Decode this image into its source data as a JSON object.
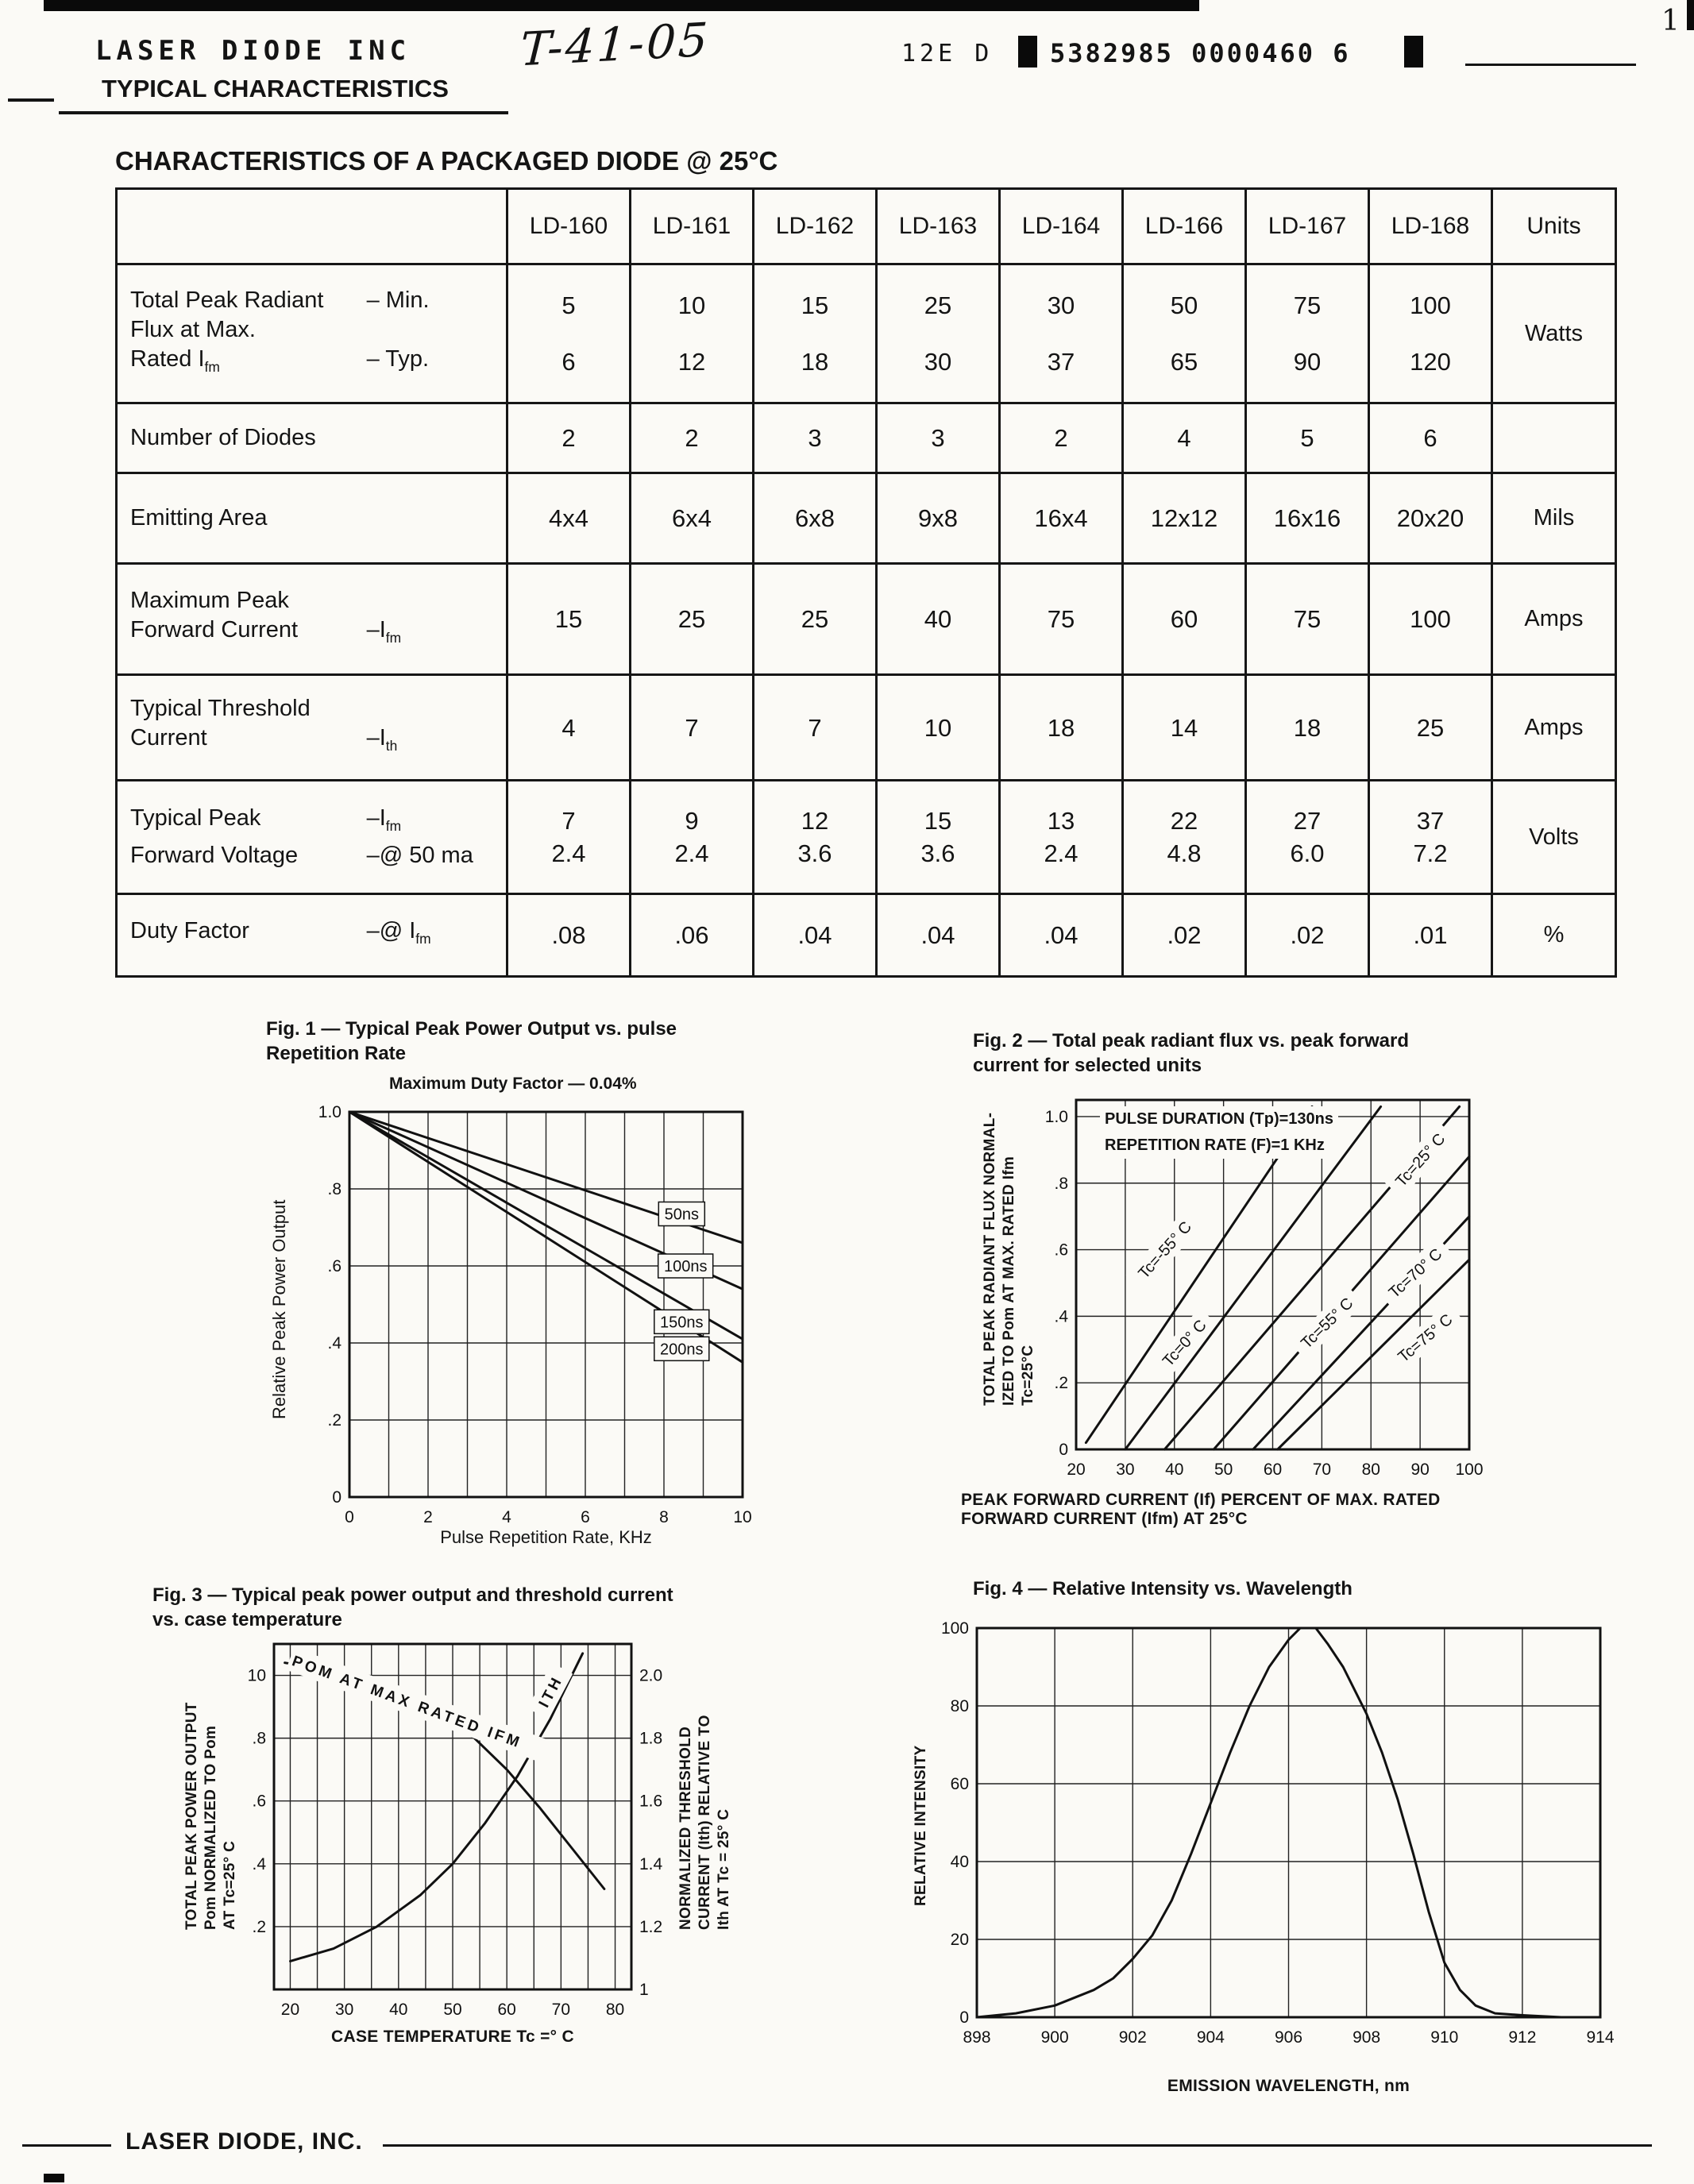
{
  "page": {
    "artifacts": {
      "page_number": "1"
    },
    "header": {
      "company": "LASER DIODE INC",
      "handwritten": "T-41-05",
      "doc_code": "12E D",
      "stamp_number": "5382985 0000460 6",
      "section_heading": "TYPICAL CHARACTERISTICS"
    },
    "title": "CHARACTERISTICS OF A PACKAGED DIODE @ 25°C",
    "footer": {
      "company": "LASER DIODE, INC."
    }
  },
  "table": {
    "columns": [
      "",
      "LD-160",
      "LD-161",
      "LD-162",
      "LD-163",
      "LD-164",
      "LD-166",
      "LD-167",
      "LD-168",
      "Units"
    ],
    "rows": [
      {
        "label_lines": [
          [
            "Total Peak Radiant",
            "– Min."
          ],
          [
            "Flux at Max.",
            ""
          ],
          [
            "Rated I~fm~",
            "– Typ."
          ]
        ],
        "cells": [
          [
            "5",
            "6"
          ],
          [
            "10",
            "12"
          ],
          [
            "15",
            "18"
          ],
          [
            "25",
            "30"
          ],
          [
            "30",
            "37"
          ],
          [
            "50",
            "65"
          ],
          [
            "75",
            "90"
          ],
          [
            "100",
            "120"
          ]
        ],
        "units": "Watts"
      },
      {
        "label_lines": [
          [
            "Number of Diodes",
            ""
          ]
        ],
        "cells": [
          "2",
          "2",
          "3",
          "3",
          "2",
          "4",
          "5",
          "6"
        ],
        "units": ""
      },
      {
        "label_lines": [
          [
            "Emitting Area",
            ""
          ]
        ],
        "cells": [
          "4x4",
          "6x4",
          "6x8",
          "9x8",
          "16x4",
          "12x12",
          "16x16",
          "20x20"
        ],
        "units": "Mils"
      },
      {
        "label_lines": [
          [
            "Maximum Peak",
            ""
          ],
          [
            "Forward Current",
            "–I~fm~"
          ]
        ],
        "cells": [
          "15",
          "25",
          "25",
          "40",
          "75",
          "60",
          "75",
          "100"
        ],
        "units": "Amps"
      },
      {
        "label_lines": [
          [
            "Typical Threshold",
            ""
          ],
          [
            "Current",
            "–I~th~"
          ]
        ],
        "cells": [
          "4",
          "7",
          "7",
          "10",
          "18",
          "14",
          "18",
          "25"
        ],
        "units": "Amps"
      },
      {
        "label_lines": [
          [
            "Typical Peak",
            "–I~fm~"
          ],
          [
            "Forward Voltage",
            "–@ 50 ma"
          ]
        ],
        "cells": [
          [
            "7",
            "2.4"
          ],
          [
            "9",
            "2.4"
          ],
          [
            "12",
            "3.6"
          ],
          [
            "15",
            "3.6"
          ],
          [
            "13",
            "2.4"
          ],
          [
            "22",
            "4.8"
          ],
          [
            "27",
            "6.0"
          ],
          [
            "37",
            "7.2"
          ]
        ],
        "units": "Volts"
      },
      {
        "label_lines": [
          [
            "Duty Factor",
            "–@ I~fm~"
          ]
        ],
        "cells": [
          ".08",
          ".06",
          ".04",
          ".04",
          ".04",
          ".02",
          ".02",
          ".01"
        ],
        "units": "%"
      }
    ]
  },
  "chart_data": [
    {
      "id": "fig1",
      "type": "line",
      "caption_lines": [
        "Fig. 1 — Typical Peak Power Output vs. pulse",
        "Repetition Rate"
      ],
      "subtitle": "Maximum Duty Factor — 0.04%",
      "xlabel": "Pulse Repetition Rate, KHz",
      "ylabel": "Relative Peak Power Output",
      "xlim": [
        0,
        10
      ],
      "ylim": [
        0,
        1.0
      ],
      "xticks": [
        {
          "v": 0,
          "label": "0"
        },
        {
          "v": 2,
          "label": "2"
        },
        {
          "v": 4,
          "label": "4"
        },
        {
          "v": 6,
          "label": "6"
        },
        {
          "v": 8,
          "label": "8"
        },
        {
          "v": 10,
          "label": "10"
        }
      ],
      "yticks": [
        {
          "v": 1.0,
          "label": "1.0"
        },
        {
          "v": 0.8,
          "label": ".8"
        },
        {
          "v": 0.6,
          "label": ".6"
        },
        {
          "v": 0.4,
          "label": ".4"
        },
        {
          "v": 0.2,
          "label": ".2"
        },
        {
          "v": 0,
          "label": "0"
        }
      ],
      "grid_x": [
        1,
        2,
        3,
        4,
        5,
        6,
        7,
        8,
        9
      ],
      "grid_y": [
        0.2,
        0.4,
        0.6,
        0.8
      ],
      "legend_position": "right-inside",
      "series": [
        {
          "name": "50ns",
          "points": [
            [
              0,
              1.0
            ],
            [
              10,
              0.66
            ]
          ],
          "label": {
            "x": 8.45,
            "y": 0.735,
            "rotate": 0,
            "box": true
          }
        },
        {
          "name": "100ns",
          "points": [
            [
              0,
              1.0
            ],
            [
              10,
              0.54
            ]
          ],
          "label": {
            "x": 8.55,
            "y": 0.6,
            "rotate": 0,
            "box": true
          }
        },
        {
          "name": "150ns",
          "points": [
            [
              0,
              1.0
            ],
            [
              10,
              0.41
            ]
          ],
          "label": {
            "x": 8.45,
            "y": 0.455,
            "rotate": 0,
            "box": true
          }
        },
        {
          "name": "200ns",
          "points": [
            [
              0,
              1.0
            ],
            [
              10,
              0.35
            ]
          ],
          "label": {
            "x": 8.45,
            "y": 0.385,
            "rotate": 0,
            "box": true
          }
        }
      ]
    },
    {
      "id": "fig2",
      "type": "line",
      "caption_lines": [
        "Fig. 2 — Total peak radiant flux vs. peak forward",
        "current for selected units"
      ],
      "annotation_lines": [
        "PULSE DURATION (Tp)=130ns",
        "REPETITION RATE (F)=1 KHz"
      ],
      "ylabel_lines": [
        "TOTAL PEAK RADIANT FLUX NORMAL-",
        "IZED TO Pom AT MAX. RATED Ifm",
        "Tc=25°C"
      ],
      "xlabel_lines": [
        "PEAK FORWARD CURRENT (If) PERCENT OF MAX. RATED",
        "FORWARD CURRENT (Ifm) AT 25°C"
      ],
      "xlim": [
        20,
        100
      ],
      "ylim": [
        0,
        1.05
      ],
      "xticks": [
        {
          "v": 20,
          "label": "20"
        },
        {
          "v": 30,
          "label": "30"
        },
        {
          "v": 40,
          "label": "40"
        },
        {
          "v": 50,
          "label": "50"
        },
        {
          "v": 60,
          "label": "60"
        },
        {
          "v": 70,
          "label": "70"
        },
        {
          "v": 80,
          "label": "80"
        },
        {
          "v": 90,
          "label": "90"
        },
        {
          "v": 100,
          "label": "100"
        }
      ],
      "yticks": [
        {
          "v": 1.0,
          "label": "1.0"
        },
        {
          "v": 0.8,
          "label": ".8"
        },
        {
          "v": 0.6,
          "label": ".6"
        },
        {
          "v": 0.4,
          "label": ".4"
        },
        {
          "v": 0.2,
          "label": ".2"
        },
        {
          "v": 0,
          "label": "0"
        }
      ],
      "grid_x": [
        30,
        40,
        50,
        60,
        70,
        80,
        90
      ],
      "grid_y": [
        0.2,
        0.4,
        0.6,
        0.8,
        1.0
      ],
      "series": [
        {
          "name": "Tc=-55° C",
          "points": [
            [
              22,
              0.02
            ],
            [
              68,
              1.03
            ]
          ],
          "label": {
            "x": 38,
            "y": 0.6,
            "rotate": -48
          }
        },
        {
          "name": "Tc=0° C",
          "points": [
            [
              30,
              0
            ],
            [
              82,
              1.03
            ]
          ],
          "label": {
            "x": 42,
            "y": 0.32,
            "rotate": -48
          }
        },
        {
          "name": "Tc=25° C",
          "points": [
            [
              38,
              0
            ],
            [
              98,
              1.03
            ]
          ],
          "label": {
            "x": 90,
            "y": 0.87,
            "rotate": -48
          }
        },
        {
          "name": "Tc=55° C",
          "points": [
            [
              48,
              0
            ],
            [
              100,
              0.88
            ]
          ],
          "label": {
            "x": 71,
            "y": 0.38,
            "rotate": -44
          }
        },
        {
          "name": "Tc=70° C",
          "points": [
            [
              56,
              0
            ],
            [
              100,
              0.7
            ]
          ],
          "label": {
            "x": 89,
            "y": 0.53,
            "rotate": -42
          }
        },
        {
          "name": "Tc=75° C",
          "points": [
            [
              61,
              0
            ],
            [
              100,
              0.57
            ]
          ],
          "label": {
            "x": 91,
            "y": 0.335,
            "rotate": -40
          }
        }
      ]
    },
    {
      "id": "fig3",
      "type": "line",
      "caption_lines": [
        "Fig. 3 — Typical peak power output and threshold current",
        "vs. case temperature"
      ],
      "ylabel_left_lines": [
        "TOTAL PEAK POWER OUTPUT",
        "Pom NORMALIZED TO Pom",
        "AT Tc=25° C"
      ],
      "ylabel_right_lines": [
        "NORMALIZED THRESHOLD",
        "CURRENT (Ith) RELATIVE TO",
        "Ith AT Tc = 25° C"
      ],
      "xlabel": "CASE TEMPERATURE Tc =° C",
      "xlim": [
        17,
        83
      ],
      "ylim": [
        0,
        1.1
      ],
      "xticks": [
        {
          "v": 20,
          "label": "20"
        },
        {
          "v": 30,
          "label": "30"
        },
        {
          "v": 40,
          "label": "40"
        },
        {
          "v": 50,
          "label": "50"
        },
        {
          "v": 60,
          "label": "60"
        },
        {
          "v": 70,
          "label": "70"
        },
        {
          "v": 80,
          "label": "80"
        }
      ],
      "yticks": [
        {
          "v": 1.0,
          "label": "10"
        },
        {
          "v": 0.8,
          "label": ".8"
        },
        {
          "v": 0.6,
          "label": ".6"
        },
        {
          "v": 0.4,
          "label": ".4"
        },
        {
          "v": 0.2,
          "label": ".2"
        }
      ],
      "yticks_right": [
        {
          "v": 1.0,
          "label": "2.0"
        },
        {
          "v": 0.8,
          "label": "1.8"
        },
        {
          "v": 0.6,
          "label": "1.6"
        },
        {
          "v": 0.4,
          "label": "1.4"
        },
        {
          "v": 0.2,
          "label": "1.2"
        },
        {
          "v": 0,
          "label": "1"
        }
      ],
      "grid_x": [
        20,
        25,
        30,
        35,
        40,
        45,
        50,
        55,
        60,
        65,
        70,
        75,
        80
      ],
      "grid_y": [
        0.2,
        0.4,
        0.6,
        0.8,
        1.0
      ],
      "series": [
        {
          "name": "POM AT MAX RATED IFM",
          "points": [
            [
              19,
              1.04
            ],
            [
              26,
              1.02
            ],
            [
              33,
              0.99
            ],
            [
              40,
              0.95
            ],
            [
              47,
              0.89
            ],
            [
              54,
              0.8
            ],
            [
              60,
              0.7
            ],
            [
              66,
              0.58
            ],
            [
              72,
              0.45
            ],
            [
              78,
              0.32
            ]
          ],
          "label": {
            "x": 20.5,
            "y": 1.05,
            "rotate": 20,
            "spread": true,
            "anchor": "start"
          }
        },
        {
          "name": "ITH",
          "points": [
            [
              20,
              0.09
            ],
            [
              28,
              0.13
            ],
            [
              36,
              0.2
            ],
            [
              44,
              0.3
            ],
            [
              50,
              0.4
            ],
            [
              56,
              0.53
            ],
            [
              62,
              0.68
            ],
            [
              68,
              0.86
            ],
            [
              72,
              1.0
            ],
            [
              74,
              1.07
            ]
          ],
          "label": {
            "x": 68,
            "y": 0.95,
            "rotate": -62,
            "spread": true
          }
        }
      ]
    },
    {
      "id": "fig4",
      "type": "line",
      "caption_lines": [
        "Fig. 4 — Relative Intensity vs. Wavelength"
      ],
      "ylabel": "RELATIVE INTENSITY",
      "xlabel": "EMISSION WAVELENGTH, nm",
      "xlim": [
        898,
        914
      ],
      "ylim": [
        0,
        100
      ],
      "xticks": [
        {
          "v": 898,
          "label": "898"
        },
        {
          "v": 900,
          "label": "900"
        },
        {
          "v": 902,
          "label": "902"
        },
        {
          "v": 904,
          "label": "904"
        },
        {
          "v": 906,
          "label": "906"
        },
        {
          "v": 908,
          "label": "908"
        },
        {
          "v": 910,
          "label": "910"
        },
        {
          "v": 912,
          "label": "912"
        },
        {
          "v": 914,
          "label": "914"
        }
      ],
      "yticks": [
        {
          "v": 100,
          "label": "100"
        },
        {
          "v": 80,
          "label": "80"
        },
        {
          "v": 60,
          "label": "60"
        },
        {
          "v": 40,
          "label": "40"
        },
        {
          "v": 20,
          "label": "20"
        },
        {
          "v": 0,
          "label": "0"
        }
      ],
      "grid_x": [
        900,
        902,
        904,
        906,
        908,
        910,
        912
      ],
      "grid_y": [
        20,
        40,
        60,
        80
      ],
      "series": [
        {
          "name": "",
          "points": [
            [
              898,
              0
            ],
            [
              899,
              1
            ],
            [
              900,
              3
            ],
            [
              901,
              7
            ],
            [
              901.5,
              10
            ],
            [
              902,
              15
            ],
            [
              902.5,
              21
            ],
            [
              903,
              30
            ],
            [
              903.5,
              42
            ],
            [
              904,
              55
            ],
            [
              904.5,
              68
            ],
            [
              905,
              80
            ],
            [
              905.5,
              90
            ],
            [
              906,
              97
            ],
            [
              906.3,
              100
            ],
            [
              906.7,
              100
            ],
            [
              907,
              96
            ],
            [
              907.4,
              90
            ],
            [
              908,
              78
            ],
            [
              908.4,
              68
            ],
            [
              908.8,
              56
            ],
            [
              909.2,
              42
            ],
            [
              909.6,
              27
            ],
            [
              910,
              14
            ],
            [
              910.4,
              7
            ],
            [
              910.8,
              3
            ],
            [
              911.3,
              1
            ],
            [
              912,
              0.5
            ],
            [
              913,
              0
            ]
          ]
        }
      ]
    }
  ]
}
